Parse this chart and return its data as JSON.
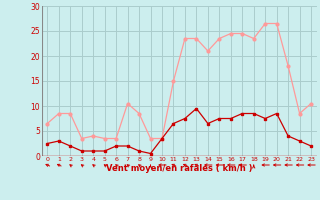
{
  "x": [
    0,
    1,
    2,
    3,
    4,
    5,
    6,
    7,
    8,
    9,
    10,
    11,
    12,
    13,
    14,
    15,
    16,
    17,
    18,
    19,
    20,
    21,
    22,
    23
  ],
  "mean_wind": [
    2.5,
    3.0,
    2.0,
    1.0,
    1.0,
    1.0,
    2.0,
    2.0,
    1.0,
    0.5,
    3.5,
    6.5,
    7.5,
    9.5,
    6.5,
    7.5,
    7.5,
    8.5,
    8.5,
    7.5,
    8.5,
    4.0,
    3.0,
    2.0
  ],
  "gust_wind": [
    6.5,
    8.5,
    8.5,
    3.5,
    4.0,
    3.5,
    3.5,
    10.5,
    8.5,
    3.5,
    3.5,
    15.0,
    23.5,
    23.5,
    21.0,
    23.5,
    24.5,
    24.5,
    23.5,
    26.5,
    26.5,
    18.0,
    8.5,
    10.5
  ],
  "mean_color": "#cc0000",
  "gust_color": "#ff9999",
  "bg_color": "#cceeee",
  "grid_color": "#aacccc",
  "xlabel": "Vent moyen/en rafales ( km/h )",
  "xlabel_color": "#cc0000",
  "tick_color": "#cc0000",
  "ylim": [
    0,
    30
  ],
  "yticks": [
    0,
    5,
    10,
    15,
    20,
    25,
    30
  ],
  "xlim": [
    -0.5,
    23.5
  ],
  "arrow_angles": [
    225,
    225,
    210,
    210,
    210,
    210,
    210,
    210,
    210,
    180,
    270,
    225,
    225,
    225,
    270,
    270,
    270,
    270,
    180,
    270,
    270,
    270,
    270,
    270
  ]
}
